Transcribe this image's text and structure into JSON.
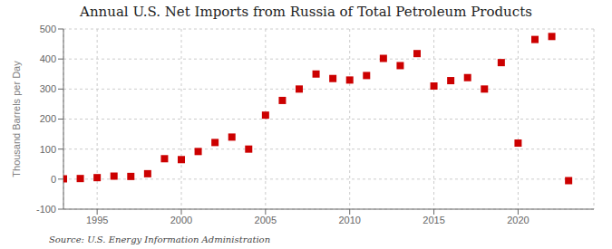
{
  "chart_data": {
    "type": "scatter",
    "title": "Annual U.S. Net Imports from Russia of Total Petroleum Products",
    "y_label": "Thousand Barrels per Day",
    "annotations": [
      "Source: U.S. Energy Information Administration"
    ],
    "x": [
      1993,
      1994,
      1995,
      1996,
      1997,
      1998,
      1999,
      2000,
      2001,
      2002,
      2003,
      2004,
      2005,
      2006,
      2007,
      2008,
      2009,
      2010,
      2011,
      2012,
      2013,
      2014,
      2015,
      2016,
      2017,
      2018,
      2019,
      2020,
      2021,
      2022,
      2023
    ],
    "values": [
      1,
      2,
      5,
      10,
      9,
      18,
      68,
      65,
      92,
      122,
      140,
      100,
      213,
      262,
      300,
      350,
      335,
      330,
      345,
      402,
      378,
      418,
      310,
      328,
      338,
      300,
      388,
      120,
      465,
      475,
      -5
    ],
    "color": "#cc0000",
    "marker": "square",
    "xlim": [
      1993,
      2024.5
    ],
    "ylim": [
      -100,
      500
    ],
    "xticks": [
      1995,
      2000,
      2005,
      2010,
      2015,
      2020
    ],
    "yticks": [
      -100,
      0,
      100,
      200,
      300,
      400,
      500
    ],
    "grid": true
  }
}
